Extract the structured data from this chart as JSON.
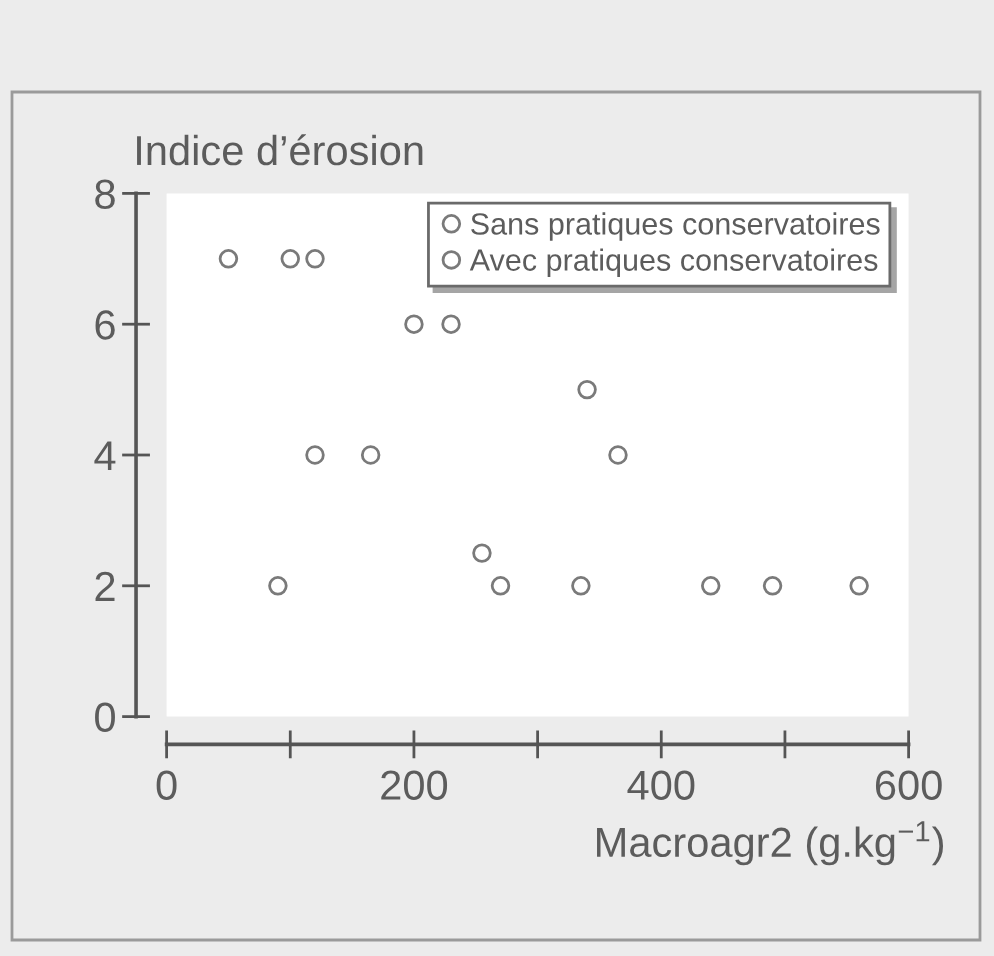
{
  "chart_data": {
    "type": "scatter",
    "xlabel": "Macroagr2 (g.kg$^{−1}$)",
    "ylabel": "Indice d’érosion",
    "series": [
      {
        "name": "Sans pratiques conservatoires",
        "color": "#7a7a7a",
        "x": [
          50,
          100,
          120,
          200,
          230,
          340,
          120,
          165,
          365
        ],
        "values": [
          7,
          7,
          7,
          6,
          6,
          5,
          4,
          4,
          4
        ]
      },
      {
        "name": "Avec pratiques conservatoires",
        "color": "#7a7a7a",
        "x": [
          90,
          255,
          270,
          335,
          440,
          490,
          560
        ],
        "values": [
          2,
          2.5,
          2,
          2,
          2,
          2,
          2
        ]
      }
    ],
    "xlim": [
      0,
      600
    ],
    "xticks": [
      0,
      {
        "value": 100,
        "label": null
      },
      200,
      {
        "value": 300,
        "label": null
      },
      400,
      {
        "value": 500,
        "label": null
      },
      600
    ],
    "ylim": [
      0,
      8
    ],
    "yticks": [
      0,
      2,
      4,
      6,
      8
    ],
    "marker": "circle",
    "grid": false,
    "legend": "top right"
  }
}
